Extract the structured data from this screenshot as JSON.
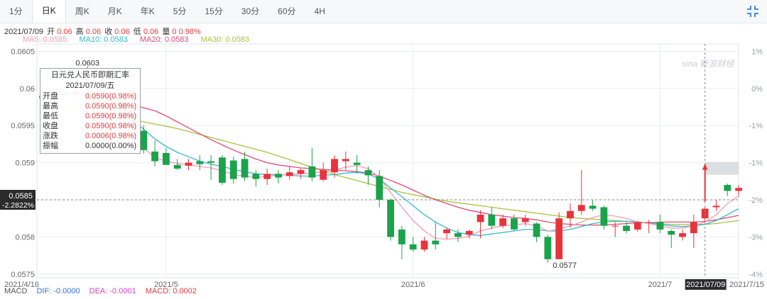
{
  "tabs": [
    "1分",
    "日K",
    "周K",
    "月K",
    "年K",
    "5分",
    "15分",
    "30分",
    "60分",
    "4H"
  ],
  "active_tab": 1,
  "ohlc": {
    "date": "2021/07/09",
    "open_label": "开",
    "open": "0.06",
    "high_label": "高",
    "high": "0.06",
    "close_label": "收",
    "close": "0.06",
    "low_label": "低",
    "low": "0.06",
    "volume_label": "量",
    "volume": "0",
    "change": "0.98%"
  },
  "ma_labels": [
    {
      "text": "MA5: 0.0585",
      "color": "#f39cb0"
    },
    {
      "text": "MA10: 0.0583",
      "color": "#35b8d4"
    },
    {
      "text": "MA20: 0.0583",
      "color": "#e04b7a"
    },
    {
      "text": "MA30: 0.0583",
      "color": "#a6c43b"
    }
  ],
  "tooltip": {
    "title": "日元兑人民币即期汇率",
    "date": "2021/07/09/五",
    "rows": [
      {
        "label": "开盘",
        "value": "0.0590(0.98%)"
      },
      {
        "label": "最高",
        "value": "0.0590(0.98%)"
      },
      {
        "label": "最低",
        "value": "0.0590(0.98%)"
      },
      {
        "label": "收盘",
        "value": "0.0590(0.98%)"
      },
      {
        "label": "涨跌",
        "value": "0.0006(0.98%)"
      },
      {
        "label": "振幅",
        "value": "0.0000(0.00%)"
      }
    ]
  },
  "watermark": "sina 新浪财经",
  "macd": {
    "label": "MACD",
    "dif": "DIF: -0.0000",
    "dea": "DEA: -0.0001",
    "macd": "MACD: 0.0002",
    "dif_color": "#3a6fd8",
    "dea_color": "#d33fc7",
    "macd_color": "#e23b41"
  },
  "colors": {
    "up": "#e8333b",
    "down": "#1aa34a",
    "grid": "#e9ecef",
    "axis_text": "#666666"
  },
  "chart_data": {
    "type": "candlestick",
    "title": "日元兑人民币即期汇率",
    "ylim": [
      0.05745,
      0.0606
    ],
    "y_ticks": [
      "0.0605",
      "0.06",
      "0.0595",
      "0.059",
      "0.0585",
      "0.058",
      "0.0575"
    ],
    "y_tick_values": [
      0.0605,
      0.06,
      0.0595,
      0.059,
      0.0585,
      0.058,
      0.0575
    ],
    "right_ticks": [
      "1%",
      "0%",
      "-1%",
      "-1%",
      "-2%",
      "-3%",
      "-4%"
    ],
    "right_tick_values": [
      0.0605,
      0.06,
      0.0595,
      0.059,
      0.0585,
      0.058,
      0.0575
    ],
    "x_labels": [
      "2021/4/16",
      "2021/5",
      "2021/6",
      "2021/7",
      "2021/7/15"
    ],
    "x_label_index": [
      0,
      11,
      33,
      55,
      62
    ],
    "crosshair_index": 59,
    "crosshair_date": "2021/07/09",
    "crosshair_value": "0.0585",
    "crosshair_pct": "-2.2822%",
    "high_marker": {
      "text": "0.0603",
      "index": 4,
      "value": 0.0603
    },
    "low_marker": {
      "text": "0.0577",
      "index": 46,
      "value": 0.0577
    },
    "candles": [
      [
        0.0599,
        0.05987,
        0.05993,
        0.05985
      ],
      [
        0.05992,
        0.05995,
        0.05998,
        0.05988
      ],
      [
        0.05994,
        0.05991,
        0.05997,
        0.05988
      ],
      [
        0.05993,
        0.05996,
        0.06,
        0.0599
      ],
      [
        0.05995,
        0.05995,
        0.0603,
        0.0599
      ],
      [
        0.05985,
        0.05982,
        0.0599,
        0.0598
      ],
      [
        0.05987,
        0.05983,
        0.0599,
        0.0598
      ],
      [
        0.05984,
        0.0597,
        0.05986,
        0.0595
      ],
      [
        0.0597,
        0.05946,
        0.05972,
        0.0592
      ],
      [
        0.05943,
        0.05917,
        0.0595,
        0.05912
      ],
      [
        0.05915,
        0.05902,
        0.0593,
        0.05895
      ],
      [
        0.05913,
        0.05897,
        0.0592,
        0.0591
      ],
      [
        0.05897,
        0.05892,
        0.05905,
        0.0589
      ],
      [
        0.05896,
        0.059,
        0.05905,
        0.0589
      ],
      [
        0.05902,
        0.05898,
        0.0591,
        0.0589
      ],
      [
        0.05902,
        0.059,
        0.0591,
        0.05877
      ],
      [
        0.05907,
        0.05873,
        0.0591,
        0.0587
      ],
      [
        0.05903,
        0.05878,
        0.05908,
        0.05872
      ],
      [
        0.05905,
        0.0588,
        0.05915,
        0.05875
      ],
      [
        0.05885,
        0.05878,
        0.0589,
        0.05868
      ],
      [
        0.05878,
        0.05885,
        0.05892,
        0.0587
      ],
      [
        0.05885,
        0.0588,
        0.0589,
        0.05872
      ],
      [
        0.05882,
        0.05887,
        0.05895,
        0.05877
      ],
      [
        0.05885,
        0.0589,
        0.05892,
        0.05878
      ],
      [
        0.05895,
        0.0588,
        0.0592,
        0.05875
      ],
      [
        0.05877,
        0.0589,
        0.059,
        0.05875
      ],
      [
        0.05887,
        0.05905,
        0.0591,
        0.0588
      ],
      [
        0.05902,
        0.05905,
        0.05915,
        0.0589
      ],
      [
        0.059,
        0.05897,
        0.0591,
        0.05885
      ],
      [
        0.0589,
        0.05883,
        0.05895,
        0.0587
      ],
      [
        0.05882,
        0.0585,
        0.0589,
        0.0584
      ],
      [
        0.0585,
        0.058,
        0.05852,
        0.05795
      ],
      [
        0.0581,
        0.0579,
        0.05815,
        0.0577
      ],
      [
        0.0579,
        0.05783,
        0.058,
        0.0578
      ],
      [
        0.05783,
        0.05795,
        0.058,
        0.0578
      ],
      [
        0.05795,
        0.0579,
        0.0582,
        0.05783
      ],
      [
        0.05805,
        0.0581,
        0.05812,
        0.05797
      ],
      [
        0.05805,
        0.058,
        0.0581,
        0.05793
      ],
      [
        0.05803,
        0.05808,
        0.0581,
        0.05798
      ],
      [
        0.0582,
        0.0583,
        0.05836,
        0.05798
      ],
      [
        0.0583,
        0.05815,
        0.0584,
        0.0581
      ],
      [
        0.05815,
        0.05825,
        0.0583,
        0.05812
      ],
      [
        0.05825,
        0.0581,
        0.0583,
        0.05808
      ],
      [
        0.0582,
        0.05825,
        0.0583,
        0.05815
      ],
      [
        0.05818,
        0.058,
        0.0582,
        0.05793
      ],
      [
        0.058,
        0.0577,
        0.05803,
        0.05765
      ],
      [
        0.0577,
        0.05825,
        0.05833,
        0.0577
      ],
      [
        0.05825,
        0.05835,
        0.05845,
        0.05812
      ],
      [
        0.05835,
        0.05843,
        0.0589,
        0.0583
      ],
      [
        0.05842,
        0.05838,
        0.0585,
        0.05835
      ],
      [
        0.0584,
        0.05815,
        0.05842,
        0.0581
      ],
      [
        0.05815,
        0.05815,
        0.0582,
        0.058
      ],
      [
        0.05815,
        0.05808,
        0.0582,
        0.05805
      ],
      [
        0.0581,
        0.0582,
        0.05822,
        0.05807
      ],
      [
        0.0582,
        0.0582,
        0.05823,
        0.05805
      ],
      [
        0.0582,
        0.0581,
        0.0583,
        0.05805
      ],
      [
        0.05808,
        0.05803,
        0.0581,
        0.05785
      ],
      [
        0.058,
        0.05805,
        0.0581,
        0.05795
      ],
      [
        0.05805,
        0.0582,
        0.0583,
        0.05785
      ],
      [
        0.05825,
        0.05838,
        0.0584,
        0.0582
      ],
      [
        0.0584,
        0.05842,
        0.0585,
        0.05835
      ],
      [
        0.0587,
        0.05862,
        0.05872,
        0.05855
      ],
      [
        0.05862,
        0.05866,
        0.0587,
        0.05855
      ]
    ],
    "ma5": [
      0.05992,
      0.05993,
      0.05992,
      0.0599,
      0.05985,
      0.05978,
      0.05968,
      0.05955,
      0.05938,
      0.0592,
      0.05907,
      0.05902,
      0.05899,
      0.05897,
      0.05895,
      0.05893,
      0.05889,
      0.05884,
      0.05882,
      0.0588,
      0.05882,
      0.05883,
      0.05884,
      0.05885,
      0.05886,
      0.05888,
      0.0589,
      0.05894,
      0.05896,
      0.05892,
      0.0588,
      0.0586,
      0.0584,
      0.05822,
      0.05808,
      0.05798,
      0.05797,
      0.05798,
      0.05801,
      0.05808,
      0.05812,
      0.05815,
      0.05816,
      0.05818,
      0.05815,
      0.05808,
      0.0581,
      0.05815,
      0.0582,
      0.05826,
      0.0583,
      0.05828,
      0.05825,
      0.0582,
      0.05818,
      0.05815,
      0.05812,
      0.05812,
      0.05815,
      0.0582,
      0.0583,
      0.05845,
      0.05855
    ],
    "ma10": [
      0.05992,
      0.05993,
      0.05993,
      0.05992,
      0.0599,
      0.05985,
      0.05978,
      0.0597,
      0.05958,
      0.05945,
      0.05932,
      0.05922,
      0.05914,
      0.05908,
      0.05902,
      0.05898,
      0.05895,
      0.05891,
      0.05888,
      0.05885,
      0.05884,
      0.05884,
      0.05883,
      0.05882,
      0.05882,
      0.05883,
      0.05884,
      0.05886,
      0.05887,
      0.05885,
      0.05878,
      0.05866,
      0.05854,
      0.05842,
      0.0583,
      0.0582,
      0.05812,
      0.05806,
      0.05803,
      0.05802,
      0.05804,
      0.05806,
      0.05808,
      0.0581,
      0.0581,
      0.05808,
      0.05808,
      0.0581,
      0.05814,
      0.05818,
      0.0582,
      0.05821,
      0.05821,
      0.0582,
      0.05819,
      0.05817,
      0.05815,
      0.05814,
      0.05815,
      0.05817,
      0.05822,
      0.0583,
      0.05838
    ],
    "ma20": [
      0.05995,
      0.05994,
      0.05993,
      0.05992,
      0.05991,
      0.05989,
      0.05986,
      0.05982,
      0.05978,
      0.05974,
      0.0597,
      0.05963,
      0.05955,
      0.05947,
      0.05939,
      0.05931,
      0.05924,
      0.05917,
      0.05911,
      0.05905,
      0.059,
      0.05897,
      0.05895,
      0.05893,
      0.05892,
      0.05891,
      0.0589,
      0.05889,
      0.05888,
      0.05886,
      0.05882,
      0.05876,
      0.0587,
      0.05863,
      0.05856,
      0.0585,
      0.05845,
      0.0584,
      0.05836,
      0.05833,
      0.0583,
      0.05828,
      0.05826,
      0.05825,
      0.05823,
      0.0582,
      0.05818,
      0.05817,
      0.05816,
      0.05816,
      0.05816,
      0.05817,
      0.05818,
      0.05819,
      0.05819,
      0.0582,
      0.0582,
      0.0582,
      0.0582,
      0.05821,
      0.05823,
      0.05826,
      0.05829
    ],
    "ma30": [
      0.05975,
      0.05974,
      0.05973,
      0.05971,
      0.05969,
      0.05967,
      0.05964,
      0.05961,
      0.05958,
      0.05955,
      0.05952,
      0.05949,
      0.05946,
      0.05942,
      0.05938,
      0.05934,
      0.0593,
      0.05926,
      0.05922,
      0.05918,
      0.05914,
      0.05909,
      0.05904,
      0.05899,
      0.05894,
      0.05889,
      0.05884,
      0.0588,
      0.05876,
      0.05872,
      0.05868,
      0.05864,
      0.0586,
      0.05857,
      0.05854,
      0.05851,
      0.05848,
      0.05846,
      0.05844,
      0.05842,
      0.0584,
      0.05838,
      0.05836,
      0.05834,
      0.05832,
      0.0583,
      0.05828,
      0.05826,
      0.05825,
      0.05824,
      0.05823,
      0.05822,
      0.05821,
      0.0582,
      0.05819,
      0.05818,
      0.05817,
      0.05817,
      0.05817,
      0.05817,
      0.05818,
      0.0582,
      0.05822
    ]
  }
}
